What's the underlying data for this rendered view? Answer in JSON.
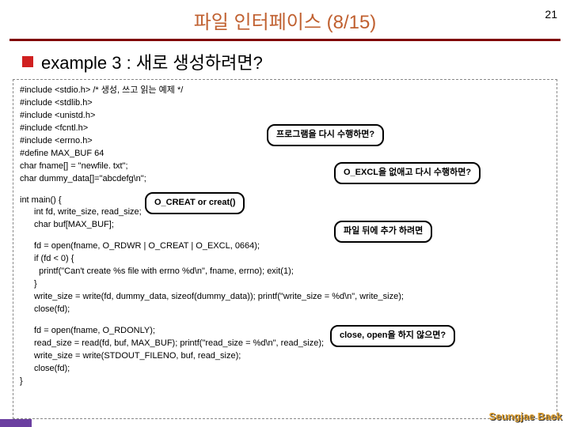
{
  "title": "파일 인터페이스 (8/15)",
  "page_num": "21",
  "subtitle": "example 3 : 새로 생성하려면?",
  "callouts": {
    "c1": "프로그램을 다시 수행하면?",
    "c2": "O_EXCL을 없애고 다시 수행하면?",
    "c3": "O_CREAT or creat()",
    "c4": "파일 뒤에 추가 하려면",
    "c5": "close, open을 하지 않으면?"
  },
  "code": {
    "l1": "#include <stdio.h> /* 생성, 쓰고 읽는 예제 */",
    "l2": "#include <stdlib.h>",
    "l3": "#include <unistd.h>",
    "l4": "#include <fcntl.h>",
    "l5": "#include <errno.h>",
    "l6": "#define MAX_BUF 64",
    "l7": "char fname[] = \"newfile. txt\";",
    "l8": "char dummy_data[]=\"abcdefg\\n\";",
    "l9": "int main() {",
    "l10": "int fd, write_size, read_size;",
    "l11": "char buf[MAX_BUF];",
    "l12": "fd = open(fname, O_RDWR | O_CREAT | O_EXCL, 0664);",
    "l13": "if (fd < 0) {",
    "l14": "  printf(\"Can't create %s file with errno %d\\n\", fname, errno); exit(1);",
    "l15": "}",
    "l16": "write_size = write(fd, dummy_data, sizeof(dummy_data)); printf(\"write_size = %d\\n\", write_size);",
    "l17": "close(fd);",
    "l18": "fd = open(fname, O_RDONLY);",
    "l19": "read_size = read(fd, buf, MAX_BUF); printf(\"read_size = %d\\n\", read_size);",
    "l20": "write_size = write(STDOUT_FILENO, buf, read_size);",
    "l21": "close(fd);",
    "l22": "}"
  },
  "footer_name": "Seungjae Baek",
  "colors": {
    "title_color": "#c06030",
    "hr_color": "#800000",
    "bullet_color": "#d02020",
    "footer_bar_color": "#6b3fa0",
    "footer_name_color": "#e0a030"
  }
}
